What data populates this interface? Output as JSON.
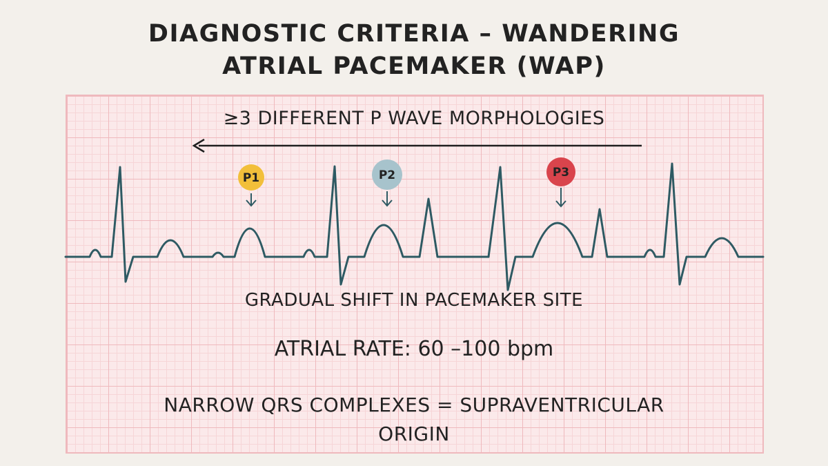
{
  "title": {
    "line1": "DIAGNOSTIC CRITERIA – WANDERING",
    "line2": "ATRIAL PACEMAKER (WAP)"
  },
  "criteria": {
    "p_wave_morphologies": "≥3 DIFFERENT P WAVE MORPHOLOGIES",
    "gradual_shift": "GRADUAL SHIFT IN PACEMAKER SITE",
    "atrial_rate": "ATRIAL RATE:  60 –100 bpm",
    "narrow_qrs_line1": "NARROW QRS COMPLEXES = SUPRAVENTRICULAR",
    "narrow_qrs_line2": "ORIGIN"
  },
  "p_waves": [
    {
      "label": "P1",
      "color": "#f2bf3a",
      "text_color": "#222222"
    },
    {
      "label": "P2",
      "color": "#a7c3cc",
      "text_color": "#222222"
    },
    {
      "label": "P3",
      "color": "#d9444c",
      "text_color": "#222222"
    }
  ],
  "colors": {
    "ecg_trace": "#2e5a63",
    "grid_major": "#efb9bd",
    "grid_minor": "#f6d5d7",
    "grid_background": "#fbe9ea",
    "page_background": "#f3f0eb"
  }
}
